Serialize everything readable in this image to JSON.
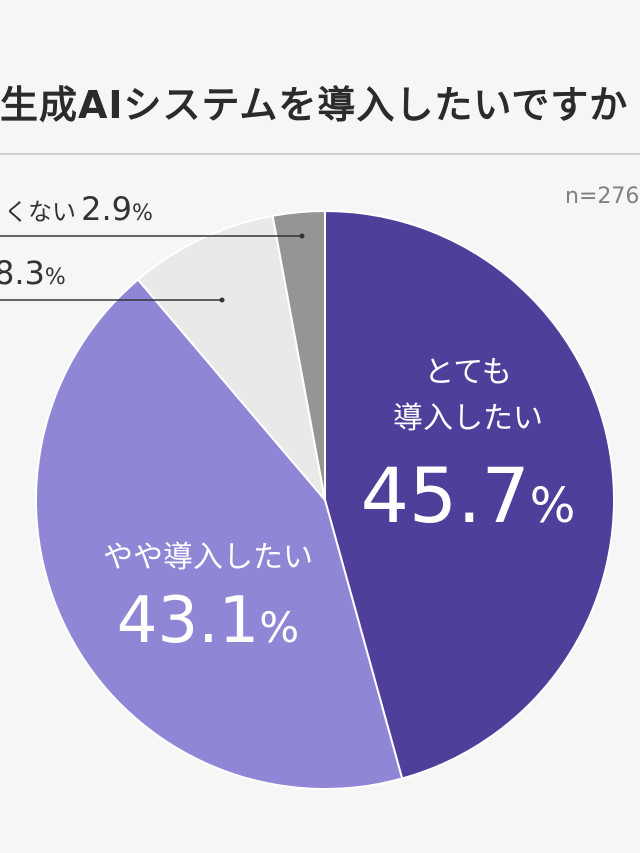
{
  "header": {
    "title": "生成AIシステムを導入したいですか",
    "sample_size": "n=276"
  },
  "chart_data": {
    "type": "pie",
    "title": "生成AIシステムを導入したいですか",
    "slices": [
      {
        "label": "とても\n導入したい",
        "value": 45.7,
        "value_label": "45.7",
        "unit": "%",
        "color": "#4f3f9b",
        "text_color": "#ffffff",
        "label_mode": "inside"
      },
      {
        "label": "やや導入したい",
        "value": 43.1,
        "value_label": "43.1",
        "unit": "%",
        "color": "#8f86d6",
        "text_color": "#ffffff",
        "label_mode": "inside"
      },
      {
        "label": "",
        "value": 8.3,
        "value_label": "8.3",
        "unit": "%",
        "color": "#e9e9e9",
        "text_color": "#333333",
        "label_mode": "outside"
      },
      {
        "label": "くない",
        "value": 2.9,
        "value_label": "2.9",
        "unit": "%",
        "color": "#959595",
        "text_color": "#333333",
        "label_mode": "outside"
      }
    ]
  },
  "outside_labels": {
    "slice3": {
      "text": "",
      "num": "8.3",
      "pct": "%"
    },
    "slice4": {
      "text": "くない",
      "num": "2.9",
      "pct": "%"
    }
  }
}
